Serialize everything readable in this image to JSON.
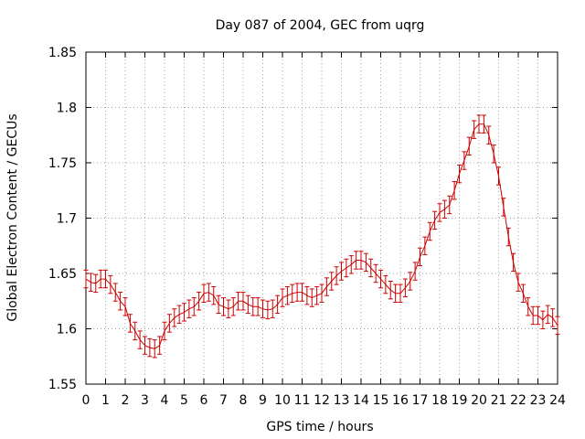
{
  "chart_data": {
    "type": "line",
    "title": "Day 087 of 2004, GEC from uqrg",
    "xlabel": "GPS time / hours",
    "ylabel": "Global Electron Content / GECUs",
    "xlim": [
      0,
      24
    ],
    "ylim": [
      1.55,
      1.85
    ],
    "xticks": [
      "0",
      "1",
      "2",
      "3",
      "4",
      "5",
      "6",
      "7",
      "8",
      "9",
      "10",
      "11",
      "12",
      "13",
      "14",
      "15",
      "16",
      "17",
      "18",
      "19",
      "20",
      "21",
      "22",
      "23",
      "24"
    ],
    "yticks": [
      "1.55",
      "1.6",
      "1.65",
      "1.7",
      "1.75",
      "1.8",
      "1.85"
    ],
    "grid": true,
    "error_bars": true,
    "series": [
      {
        "color": "#cc0000",
        "x": [
          0,
          0.25,
          0.5,
          0.75,
          1,
          1.25,
          1.5,
          1.75,
          2,
          2.25,
          2.5,
          2.75,
          3,
          3.25,
          3.5,
          3.75,
          4,
          4.25,
          4.5,
          4.75,
          5,
          5.25,
          5.5,
          5.75,
          6,
          6.25,
          6.5,
          6.75,
          7,
          7.25,
          7.5,
          7.75,
          8,
          8.25,
          8.5,
          8.75,
          9,
          9.25,
          9.5,
          9.75,
          10,
          10.25,
          10.5,
          10.75,
          11,
          11.25,
          11.5,
          11.75,
          12,
          12.25,
          12.5,
          12.75,
          13,
          13.25,
          13.5,
          13.75,
          14,
          14.25,
          14.5,
          14.75,
          15,
          15.25,
          15.5,
          15.75,
          16,
          16.25,
          16.5,
          16.75,
          17,
          17.25,
          17.5,
          17.75,
          18,
          18.25,
          18.5,
          18.75,
          19,
          19.25,
          19.5,
          19.75,
          20,
          20.25,
          20.5,
          20.75,
          21,
          21.25,
          21.5,
          21.75,
          22,
          22.25,
          22.5,
          22.75,
          23,
          23.25,
          23.5,
          23.75,
          24
        ],
        "y": [
          1.645,
          1.642,
          1.641,
          1.645,
          1.645,
          1.64,
          1.633,
          1.625,
          1.62,
          1.605,
          1.598,
          1.59,
          1.585,
          1.583,
          1.582,
          1.585,
          1.598,
          1.605,
          1.61,
          1.613,
          1.615,
          1.618,
          1.62,
          1.625,
          1.632,
          1.633,
          1.63,
          1.622,
          1.62,
          1.618,
          1.62,
          1.625,
          1.625,
          1.622,
          1.62,
          1.62,
          1.618,
          1.617,
          1.618,
          1.622,
          1.628,
          1.63,
          1.632,
          1.633,
          1.633,
          1.63,
          1.628,
          1.63,
          1.632,
          1.638,
          1.643,
          1.648,
          1.652,
          1.655,
          1.658,
          1.662,
          1.662,
          1.66,
          1.655,
          1.65,
          1.645,
          1.64,
          1.635,
          1.632,
          1.632,
          1.637,
          1.643,
          1.652,
          1.665,
          1.675,
          1.688,
          1.698,
          1.705,
          1.708,
          1.712,
          1.725,
          1.74,
          1.752,
          1.765,
          1.78,
          1.785,
          1.785,
          1.775,
          1.758,
          1.738,
          1.71,
          1.683,
          1.66,
          1.642,
          1.632,
          1.62,
          1.612,
          1.612,
          1.608,
          1.613,
          1.61,
          1.603
        ],
        "error": 0.008
      }
    ]
  }
}
